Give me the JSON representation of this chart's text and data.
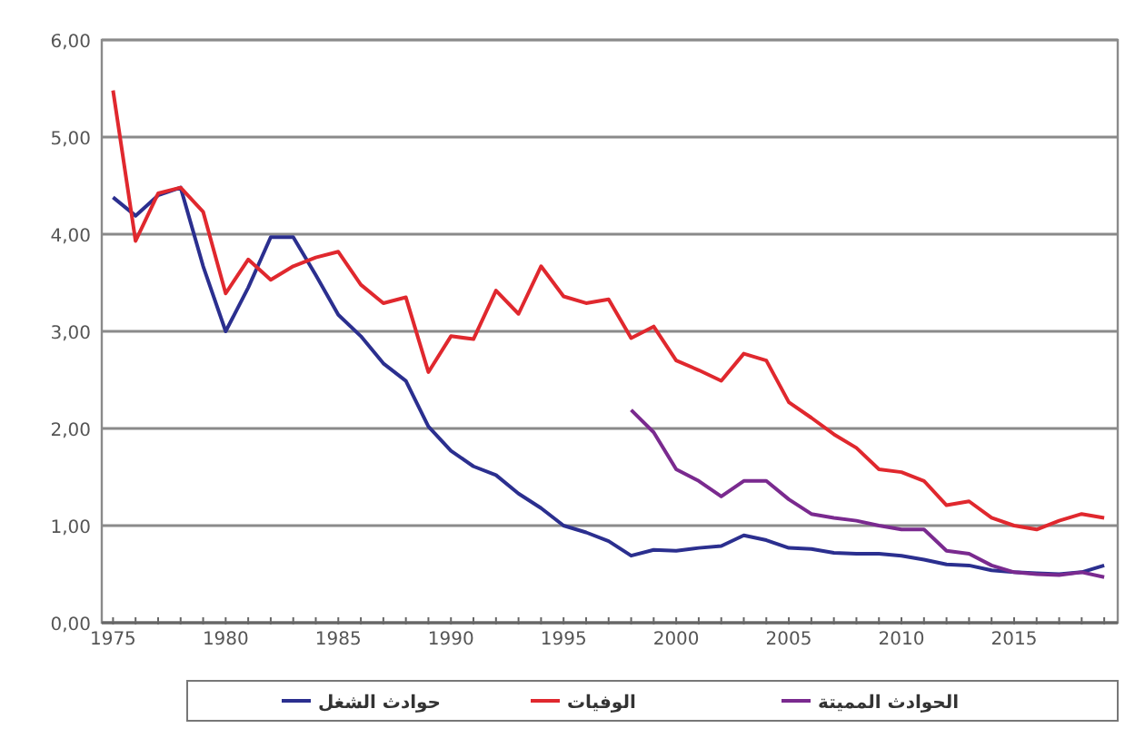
{
  "chart_data": {
    "type": "line",
    "x": [
      1975,
      1976,
      1977,
      1978,
      1979,
      1980,
      1981,
      1982,
      1983,
      1984,
      1985,
      1986,
      1987,
      1988,
      1989,
      1990,
      1991,
      1992,
      1993,
      1994,
      1995,
      1996,
      1997,
      1998,
      1999,
      2000,
      2001,
      2002,
      2003,
      2004,
      2005,
      2006,
      2007,
      2008,
      2009,
      2010,
      2011,
      2012,
      2013,
      2014,
      2015,
      2016,
      2017,
      2018,
      2019
    ],
    "series": [
      {
        "name": "حوادث الشغل",
        "color": "#2b2f8f",
        "values": [
          4.38,
          4.19,
          4.4,
          4.48,
          3.67,
          3.0,
          3.45,
          3.97,
          3.97,
          3.58,
          3.17,
          2.95,
          2.67,
          2.49,
          2.02,
          1.77,
          1.61,
          1.52,
          1.33,
          1.18,
          1.0,
          0.93,
          0.84,
          0.69,
          0.75,
          0.74,
          0.77,
          0.79,
          0.9,
          0.85,
          0.77,
          0.76,
          0.72,
          0.71,
          0.71,
          0.69,
          0.65,
          0.6,
          0.59,
          0.54,
          0.52,
          0.51,
          0.5,
          0.52,
          0.59
        ]
      },
      {
        "name": "الوفيات",
        "color": "#e0282e",
        "values": [
          5.48,
          3.93,
          4.42,
          4.48,
          4.23,
          3.39,
          3.74,
          3.53,
          3.67,
          3.76,
          3.82,
          3.48,
          3.29,
          3.35,
          2.58,
          2.95,
          2.92,
          3.42,
          3.18,
          3.67,
          3.36,
          3.29,
          3.33,
          2.93,
          3.05,
          2.7,
          2.6,
          2.49,
          2.77,
          2.7,
          2.27,
          2.11,
          1.94,
          1.8,
          1.58,
          1.55,
          1.46,
          1.21,
          1.25,
          1.08,
          1.0,
          0.96,
          1.05,
          1.12,
          1.08
        ]
      },
      {
        "name": "الحوادث المميتة",
        "color": "#7a2a8f",
        "values": [
          null,
          null,
          null,
          null,
          null,
          null,
          null,
          null,
          null,
          null,
          null,
          null,
          null,
          null,
          null,
          null,
          null,
          null,
          null,
          null,
          null,
          null,
          null,
          2.19,
          1.96,
          1.58,
          1.46,
          1.3,
          1.46,
          1.46,
          1.27,
          1.12,
          1.08,
          1.05,
          1.0,
          0.96,
          0.96,
          0.74,
          0.71,
          0.59,
          0.52,
          0.5,
          0.49,
          0.52,
          0.47
        ]
      }
    ],
    "xlim": [
      1974.5,
      2019.6
    ],
    "ylim": [
      0,
      6
    ],
    "xticks": [
      1975,
      {
        "value": 1976,
        "label": null
      },
      {
        "value": 1977,
        "label": null
      },
      {
        "value": 1978,
        "label": null
      },
      {
        "value": 1979,
        "label": null
      },
      1980,
      {
        "value": 1981,
        "label": null
      },
      {
        "value": 1982,
        "label": null
      },
      {
        "value": 1983,
        "label": null
      },
      {
        "value": 1984,
        "label": null
      },
      1985,
      {
        "value": 1986,
        "label": null
      },
      {
        "value": 1987,
        "label": null
      },
      {
        "value": 1988,
        "label": null
      },
      {
        "value": 1989,
        "label": null
      },
      1990,
      {
        "value": 1991,
        "label": null
      },
      {
        "value": 1992,
        "label": null
      },
      {
        "value": 1993,
        "label": null
      },
      {
        "value": 1994,
        "label": null
      },
      1995,
      {
        "value": 1996,
        "label": null
      },
      {
        "value": 1997,
        "label": null
      },
      {
        "value": 1998,
        "label": null
      },
      {
        "value": 1999,
        "label": null
      },
      2000,
      {
        "value": 2001,
        "label": null
      },
      {
        "value": 2002,
        "label": null
      },
      {
        "value": 2003,
        "label": null
      },
      {
        "value": 2004,
        "label": null
      },
      2005,
      {
        "value": 2006,
        "label": null
      },
      {
        "value": 2007,
        "label": null
      },
      {
        "value": 2008,
        "label": null
      },
      {
        "value": 2009,
        "label": null
      },
      2010,
      {
        "value": 2011,
        "label": null
      },
      {
        "value": 2012,
        "label": null
      },
      {
        "value": 2013,
        "label": null
      },
      {
        "value": 2014,
        "label": null
      },
      2015,
      {
        "value": 2016,
        "label": null
      },
      {
        "value": 2017,
        "label": null
      },
      {
        "value": 2018,
        "label": null
      },
      {
        "value": 2019,
        "label": null
      }
    ],
    "yticks": [
      {
        "value": 0,
        "label": "0,00"
      },
      {
        "value": 1,
        "label": "1,00"
      },
      {
        "value": 2,
        "label": "2,00"
      },
      {
        "value": 3,
        "label": "3,00"
      },
      {
        "value": 4,
        "label": "4,00"
      },
      {
        "value": 5,
        "label": "5,00"
      },
      {
        "value": 6,
        "label": "6,00"
      }
    ],
    "grid": "y",
    "legend": "bottom"
  }
}
